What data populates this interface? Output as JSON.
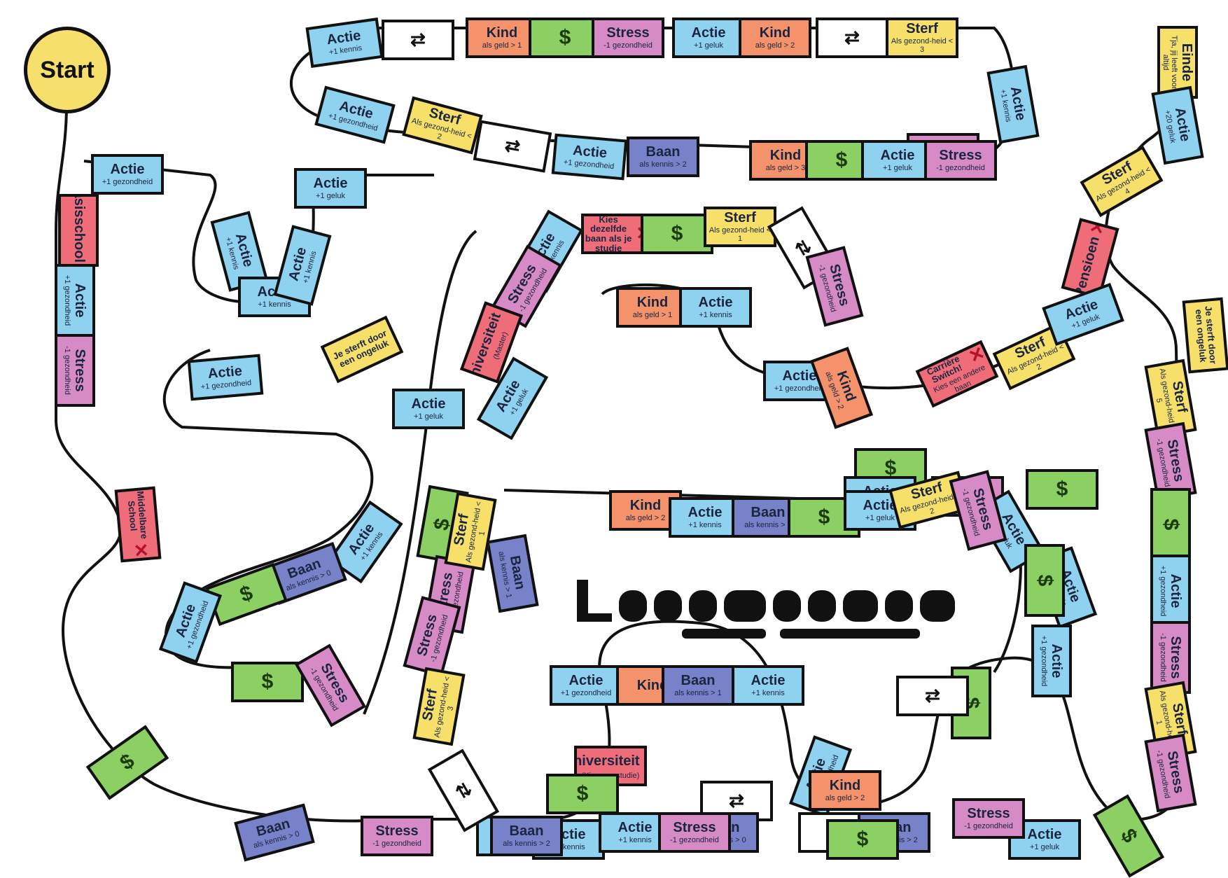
{
  "start": "Start",
  "colors": {
    "blue": "#8fd2ef",
    "orange": "#f4936b",
    "green": "#8ccf63",
    "pink": "#d68ac6",
    "yellow": "#f7e06a",
    "red": "#ef6d79",
    "navy": "#7782c8",
    "white": "#ffffff",
    "start": "#f7df6b"
  },
  "tiles": [
    {
      "title": "Actie",
      "sub": "+1 kennis",
      "color": "blue"
    },
    {
      "title": "",
      "sub": "",
      "color": "white",
      "icon": "swap-arrows-icon"
    },
    {
      "title": "Kind",
      "sub": "als geld > 1",
      "color": "orange"
    },
    {
      "title": "$",
      "sub": "",
      "color": "green",
      "icon": "dollar-icon"
    },
    {
      "title": "Stress",
      "sub": "-1 gezondheid",
      "color": "pink"
    },
    {
      "title": "Actie",
      "sub": "+1 geluk",
      "color": "blue"
    },
    {
      "title": "Kind",
      "sub": "als geld > 2",
      "color": "orange"
    },
    {
      "title": "",
      "sub": "",
      "color": "white",
      "icon": "swap-arrows-icon"
    },
    {
      "title": "Sterf",
      "sub": "Als gezond-heid < 3",
      "color": "yellow"
    },
    {
      "title": "Actie",
      "sub": "+1 kennis",
      "color": "blue"
    },
    {
      "title": "Einde",
      "sub": "Tja, jij leeft voor altijd",
      "color": "yellow"
    },
    {
      "title": "Actie",
      "sub": "+20 geluk",
      "color": "blue"
    },
    {
      "title": "Stress",
      "sub": "-1 gezondheid",
      "color": "pink"
    },
    {
      "title": "Sterf",
      "sub": "Als gezond-heid < 2",
      "color": "yellow"
    },
    {
      "title": "",
      "sub": "",
      "color": "white",
      "icon": "swap-arrows-icon"
    },
    {
      "title": "Actie",
      "sub": "+1 gezondheid",
      "color": "blue"
    },
    {
      "title": "Baan",
      "sub": "als kennis > 2",
      "color": "navy"
    },
    {
      "title": "Kind",
      "sub": "als geld > 3",
      "color": "orange"
    },
    {
      "title": "$",
      "sub": "",
      "color": "green",
      "icon": "dollar-icon"
    },
    {
      "title": "Actie",
      "sub": "+1 geluk",
      "color": "blue"
    },
    {
      "title": "Stress",
      "sub": "-1 gezondheid",
      "color": "pink"
    },
    {
      "title": "Sterf",
      "sub": "Als gezond-heid < 4",
      "color": "yellow"
    },
    {
      "title": "Actie",
      "sub": "+1 gezondheid",
      "color": "blue"
    },
    {
      "title": "Basisschool",
      "sub": "",
      "color": "red",
      "x": true
    },
    {
      "title": "Actie",
      "sub": "+1 gezondheid",
      "color": "blue"
    },
    {
      "title": "Stress",
      "sub": "-1 gezondheid",
      "color": "pink"
    },
    {
      "title": "Actie",
      "sub": "+1 gezondheid",
      "color": "blue"
    },
    {
      "title": "Actie",
      "sub": "+1 geluk",
      "color": "blue"
    },
    {
      "title": "Actie",
      "sub": "+1 kennis",
      "color": "blue"
    },
    {
      "title": "Actie",
      "sub": "+1 kennis",
      "color": "blue"
    },
    {
      "title": "Actie",
      "sub": "+1 kennis",
      "color": "blue"
    },
    {
      "title": "Kies dezelfde baan als je studie",
      "sub": "",
      "color": "red",
      "x": true
    },
    {
      "title": "$",
      "sub": "",
      "color": "green",
      "icon": "dollar-icon"
    },
    {
      "title": "Sterf",
      "sub": "Als gezond-heid < 1",
      "color": "yellow"
    },
    {
      "title": "",
      "sub": "",
      "color": "white",
      "icon": "swap-arrows-icon"
    },
    {
      "title": "Stress",
      "sub": "-1 gezondheid",
      "color": "pink"
    },
    {
      "title": "Actie",
      "sub": "+1 kennis",
      "color": "blue"
    },
    {
      "title": "Pensioen",
      "sub": "",
      "color": "red",
      "x": true
    },
    {
      "title": "Stress",
      "sub": "-1 gezondheid",
      "color": "pink"
    },
    {
      "title": "Universiteit",
      "sub": "(Master)",
      "color": "red",
      "x": true
    },
    {
      "title": "Kind",
      "sub": "als geld > 1",
      "color": "orange"
    },
    {
      "title": "Actie",
      "sub": "+1 kennis",
      "color": "blue"
    },
    {
      "title": "Actie",
      "sub": "+1 geluk",
      "color": "blue"
    },
    {
      "title": "Actie",
      "sub": "+1 gezondheid",
      "color": "blue"
    },
    {
      "title": "Je sterft door een ongeluk",
      "sub": "",
      "color": "yellow"
    },
    {
      "title": "Actie",
      "sub": "+1 gezondheid",
      "color": "blue"
    },
    {
      "title": "Actie",
      "sub": "+1 geluk",
      "color": "blue"
    },
    {
      "title": "Kind",
      "sub": "als geld > 2",
      "color": "orange"
    },
    {
      "title": "Carrière Switch!",
      "sub": "Kies een andere baan",
      "color": "red",
      "x": true
    },
    {
      "title": "Sterf",
      "sub": "Als gezond-heid < 2",
      "color": "yellow"
    },
    {
      "title": "Actie",
      "sub": "+1 geluk",
      "color": "blue"
    },
    {
      "title": "$",
      "sub": "",
      "color": "green",
      "icon": "dollar-icon"
    },
    {
      "title": "Stress",
      "sub": "-1 gezondheid",
      "color": "pink"
    },
    {
      "title": "Actie",
      "sub": "+1 geluk",
      "color": "blue"
    },
    {
      "title": "Actie",
      "sub": "+1 geluk",
      "color": "blue"
    },
    {
      "title": "$",
      "sub": "",
      "color": "green",
      "icon": "dollar-icon"
    },
    {
      "title": "Sterf",
      "sub": "Als gezond-heid < 5",
      "color": "yellow"
    },
    {
      "title": "Stress",
      "sub": "-1 gezondheid",
      "color": "pink"
    },
    {
      "title": "$",
      "sub": "",
      "color": "green",
      "icon": "dollar-icon"
    },
    {
      "title": "Kind",
      "sub": "als geld > 2",
      "color": "orange"
    },
    {
      "title": "Actie",
      "sub": "+1 kennis",
      "color": "blue"
    },
    {
      "title": "Baan",
      "sub": "als kennis > 1",
      "color": "navy"
    },
    {
      "title": "$",
      "sub": "",
      "color": "green",
      "icon": "dollar-icon"
    },
    {
      "title": "Actie",
      "sub": "+1 geluk",
      "color": "blue"
    },
    {
      "title": "Sterf",
      "sub": "Als gezond-heid < 2",
      "color": "yellow"
    },
    {
      "title": "Stress",
      "sub": "-1 gezondheid",
      "color": "pink"
    },
    {
      "title": "Actie",
      "sub": "+1 kennis",
      "color": "blue"
    },
    {
      "title": "Middelbare School",
      "sub": "",
      "color": "red",
      "x": true
    },
    {
      "title": "Actie",
      "sub": "+1 kennis",
      "color": "blue"
    },
    {
      "title": "Baan",
      "sub": "als kennis > 0",
      "color": "navy"
    },
    {
      "title": "$",
      "sub": "",
      "color": "green",
      "icon": "dollar-icon"
    },
    {
      "title": "Actie",
      "sub": "+1 gezondheid",
      "color": "blue"
    },
    {
      "title": "$",
      "sub": "",
      "color": "green",
      "icon": "dollar-icon"
    },
    {
      "title": "Stress",
      "sub": "-1 gezondheid",
      "color": "pink"
    },
    {
      "title": "Baan",
      "sub": "als kennis > 1",
      "color": "navy"
    },
    {
      "title": "Actie",
      "sub": "+1 gezondheid",
      "color": "blue"
    },
    {
      "title": "Stress",
      "sub": "-1 gezondheid",
      "color": "pink"
    },
    {
      "title": "Sterf",
      "sub": "Als gezond-heid < 1",
      "color": "yellow"
    },
    {
      "title": "$",
      "sub": "",
      "color": "green",
      "icon": "dollar-icon"
    },
    {
      "title": "Stress",
      "sub": "-1 gezondheid",
      "color": "pink"
    },
    {
      "title": "$",
      "sub": "",
      "color": "green",
      "icon": "dollar-icon"
    },
    {
      "title": "Actie",
      "sub": "+1 gezondheid",
      "color": "blue"
    },
    {
      "title": "Actie",
      "sub": "+1 gezondheid",
      "color": "blue"
    },
    {
      "title": "Kind",
      "sub": "",
      "color": "orange"
    },
    {
      "title": "Baan",
      "sub": "als kennis > 1",
      "color": "navy"
    },
    {
      "title": "Actie",
      "sub": "+1 kennis",
      "color": "blue"
    },
    {
      "title": "Stress",
      "sub": "-1 gezondheid",
      "color": "pink"
    },
    {
      "title": "Sterf",
      "sub": "Als gezond-heid < 3",
      "color": "yellow"
    },
    {
      "title": "Stress",
      "sub": "-1 gezondheid",
      "color": "pink"
    },
    {
      "title": "Sterf",
      "sub": "Als gezond-heid < 1",
      "color": "yellow"
    },
    {
      "title": "$",
      "sub": "",
      "color": "green",
      "icon": "dollar-icon"
    },
    {
      "title": "Actie",
      "sub": "+1 geluk",
      "color": "blue"
    },
    {
      "title": "Stress",
      "sub": "-1 gezondheid",
      "color": "pink"
    },
    {
      "title": "$",
      "sub": "",
      "color": "green",
      "icon": "dollar-icon"
    },
    {
      "title": "",
      "sub": "",
      "color": "white",
      "icon": "swap-arrows-icon"
    },
    {
      "title": "Actie",
      "sub": "+1 gezondheid",
      "color": "blue"
    },
    {
      "title": "",
      "sub": "",
      "color": "white",
      "icon": "swap-arrows-icon"
    },
    {
      "title": "",
      "sub": "",
      "color": "white",
      "icon": "swap-arrows-icon"
    },
    {
      "title": "Baan",
      "sub": "als kennis > 2",
      "color": "navy"
    },
    {
      "title": "Kind",
      "sub": "als geld > 2",
      "color": "orange"
    },
    {
      "title": "Je sterft door een ongeluk",
      "sub": "",
      "color": "yellow"
    },
    {
      "title": "Baan",
      "sub": "als kennis > 0",
      "color": "navy"
    },
    {
      "title": "Universiteit",
      "sub": "(Kies een studie)",
      "color": "red",
      "x": true
    },
    {
      "title": "Stress",
      "sub": "-1 gezondheid",
      "color": "pink"
    },
    {
      "title": "Actie",
      "sub": "+1 geluk",
      "color": "blue"
    },
    {
      "title": "Actie",
      "sub": "+1 kennis",
      "color": "blue"
    },
    {
      "title": "Baan",
      "sub": "als kennis > 0",
      "color": "navy"
    },
    {
      "title": "$",
      "sub": "",
      "color": "green",
      "icon": "dollar-icon"
    },
    {
      "title": "",
      "sub": "",
      "color": "white",
      "icon": "swap-arrows-icon"
    },
    {
      "title": "$",
      "sub": "",
      "color": "green",
      "icon": "dollar-icon"
    },
    {
      "title": "Baan",
      "sub": "als kennis > 2",
      "color": "navy"
    },
    {
      "title": "Actie",
      "sub": "+1 kennis",
      "color": "blue"
    },
    {
      "title": "Stress",
      "sub": "-1 gezondheid",
      "color": "pink"
    },
    {
      "title": "$",
      "sub": "",
      "color": "green",
      "icon": "dollar-icon"
    }
  ]
}
